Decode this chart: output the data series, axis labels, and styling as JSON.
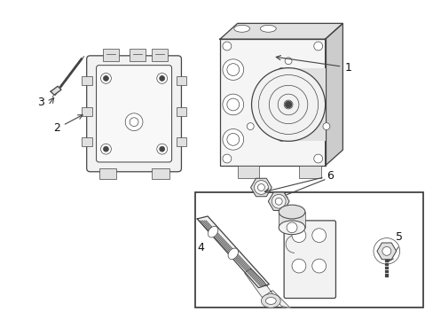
{
  "background_color": "#ffffff",
  "figsize": [
    4.89,
    3.6
  ],
  "dpi": 100,
  "lc": "#444444",
  "lw_main": 0.9,
  "lw_thin": 0.5,
  "fill_light": "#f2f2f2",
  "fill_mid": "#e0e0e0",
  "fill_dark": "#cccccc"
}
